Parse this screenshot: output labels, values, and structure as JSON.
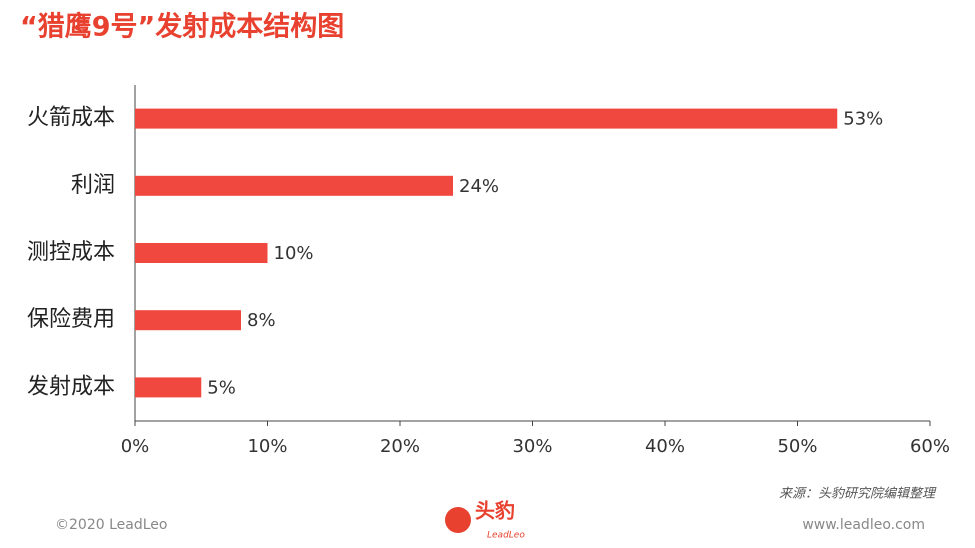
{
  "chart_data": {
    "type": "bar",
    "orientation": "horizontal",
    "title": "“猎鹰9号”发射成本结构图",
    "categories": [
      "火箭成本",
      "利润",
      "测控成本",
      "保险费用",
      "发射成本"
    ],
    "values": [
      53,
      24,
      10,
      8,
      5
    ],
    "value_labels": [
      "53%",
      "24%",
      "10%",
      "8%",
      "5%"
    ],
    "color": "#f0483e",
    "xlim": [
      0,
      60
    ],
    "xticks": [
      {
        "value": 0,
        "label": "0%"
      },
      {
        "value": 10,
        "label": "10%"
      },
      {
        "value": 20,
        "label": "20%"
      },
      {
        "value": 30,
        "label": "30%"
      },
      {
        "value": 40,
        "label": "40%"
      },
      {
        "value": 50,
        "label": "50%"
      },
      {
        "value": 60,
        "label": "60%"
      }
    ],
    "grid": false,
    "source": "来源：头豹研究院编辑整理",
    "footer_left": "©2020 LeadLeo",
    "footer_right": "www.leadleo.com",
    "logo_text": "头豹",
    "logo_subtext": "LeadLeo"
  }
}
